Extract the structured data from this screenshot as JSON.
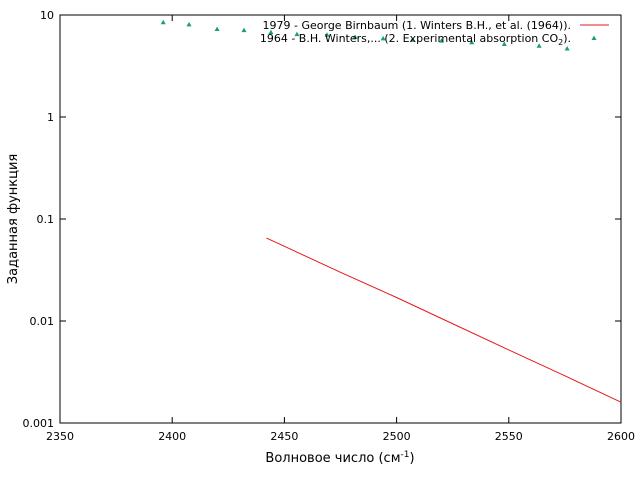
{
  "chart_data": {
    "type": "line",
    "xlabel": {
      "text": "Волновое число (см",
      "sup": "-1",
      "tail": ")"
    },
    "ylabel": "Заданная функция",
    "xlim": [
      2350,
      2600
    ],
    "xticks": [
      2350,
      2400,
      2450,
      2500,
      2550,
      2600
    ],
    "ylim": [
      0.001,
      10
    ],
    "yticks": [
      0.001,
      0.01,
      0.1,
      1,
      10
    ],
    "log_y": true,
    "grid": false,
    "legend": "top-right",
    "series": [
      {
        "name": "1979 - George Birnbaum (1. Winters B.H., et al. (1964)).",
        "style": "line",
        "color": "#e41a1c",
        "x": [
          2442,
          2450,
          2475,
          2500,
          2525,
          2550,
          2575,
          2600
        ],
        "values": [
          0.065,
          0.054,
          0.03,
          0.017,
          0.0094,
          0.0052,
          0.0029,
          0.0016
        ]
      },
      {
        "name": "1964 - B.H. Winters,... (2. Experimental absorption CO",
        "name_sub": "2",
        "name_tail": ").",
        "style": "points",
        "color": "#1a9e73",
        "x": [
          2396,
          2407.5,
          2420,
          2432,
          2444,
          2455.6,
          2469,
          2481.5,
          2494,
          2507,
          2520,
          2533.5,
          2548,
          2563.5,
          2576
        ],
        "values": [
          8.5,
          8.1,
          7.3,
          7.1,
          6.8,
          6.5,
          6.4,
          6.1,
          5.9,
          5.7,
          5.6,
          5.4,
          5.2,
          5.0,
          4.7
        ]
      }
    ]
  }
}
